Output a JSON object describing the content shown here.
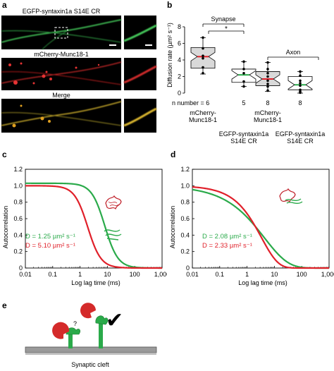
{
  "panel_a": {
    "label": "a",
    "rows": [
      {
        "title": "EGFP-syntaxin1a S14E CR"
      },
      {
        "title": "mCherry-Munc18-1"
      },
      {
        "title": "Merge"
      }
    ]
  },
  "panel_b": {
    "label": "b",
    "ylabel": "Diffusion rate (µm² s⁻¹)",
    "group_synapse": "Synapse",
    "group_axon": "Axon",
    "significance": "*",
    "n_prefix": "n number = ",
    "cat_labels": [
      {
        "line1": "mCherry-",
        "line2": "Munc18-1"
      },
      {
        "line1": "EGFP-syntaxin1a",
        "line2": "S14E CR"
      },
      {
        "line1": "mCherry-",
        "line2": "Munc18-1"
      },
      {
        "line1": "EGFP-syntaxin1a",
        "line2": "S14E CR"
      }
    ]
  },
  "panel_c": {
    "label": "c",
    "ylabel": "Autocorrelation",
    "xlabel": "Log lag time (ms)",
    "ann_green": "D = 1.25 µm² s⁻¹",
    "ann_red": "D = 5.10 µm² s⁻¹"
  },
  "panel_d": {
    "label": "d",
    "ylabel": "Autocorrelation",
    "xlabel": "Log lag time (ms)",
    "ann_green": "D = 2.08 µm² s⁻¹",
    "ann_red": "D = 2.33 µm² s⁻¹"
  },
  "panel_e": {
    "label": "e",
    "question": "?",
    "check": "✔",
    "caption": "Synaptic cleft"
  },
  "chart_data": [
    {
      "type": "box",
      "panel": "b",
      "ylabel": "Diffusion rate (µm² s⁻¹)",
      "ylim": [
        0,
        8
      ],
      "yticks": [
        0,
        2,
        4,
        6,
        8
      ],
      "categories": [
        "mCherry-Munc18-1 (Synapse)",
        "EGFP-syntaxin1a S14E CR (Synapse)",
        "mCherry-Munc18-1 (Axon)",
        "EGFP-syntaxin1a S14E CR (Axon)"
      ],
      "n": [
        6,
        5,
        8,
        8
      ],
      "box_fill": [
        "#d9d9d9",
        "#ffffff",
        "#d9d9d9",
        "#ffffff"
      ],
      "median_color": [
        "#e0202a",
        "#2aaa4a",
        "#e0202a",
        "#2aaa4a"
      ],
      "boxes": [
        {
          "min": 2.3,
          "q1": 3.0,
          "median": 4.4,
          "q3": 5.5,
          "max": 6.7,
          "points": [
            6.7,
            5.4,
            4.5,
            4.2,
            3.1,
            2.4
          ]
        },
        {
          "min": 0.8,
          "q1": 1.3,
          "median": 2.2,
          "q3": 2.9,
          "max": 3.8,
          "points": [
            3.8,
            2.9,
            2.4,
            1.4,
            0.8
          ]
        },
        {
          "min": 0.2,
          "q1": 0.9,
          "median": 1.7,
          "q3": 2.6,
          "max": 3.7,
          "points": [
            3.7,
            2.9,
            2.4,
            2.0,
            1.5,
            1.1,
            0.8,
            0.3
          ]
        },
        {
          "min": 0.0,
          "q1": 0.4,
          "median": 1.0,
          "q3": 2.0,
          "max": 2.6,
          "points": [
            2.6,
            2.1,
            1.5,
            1.2,
            0.9,
            0.4,
            0.2,
            0.05
          ]
        }
      ]
    },
    {
      "type": "line",
      "panel": "c",
      "xscale": "log",
      "xlim": [
        0.01,
        1000
      ],
      "ylim": [
        0,
        1.2
      ],
      "xticks": [
        "0.01",
        "0.1",
        "1",
        "10",
        "100",
        "1,000"
      ],
      "yticks": [
        "0",
        "0.2",
        "0.4",
        "0.6",
        "0.8",
        "1.0",
        "1.2"
      ],
      "series": [
        {
          "color": "#2aaa4a",
          "model": "fcs",
          "tau_ms": 8.0,
          "amp": 1.03
        },
        {
          "color": "#e0202a",
          "model": "fcs",
          "tau_ms": 1.9,
          "amp": 1.0
        }
      ]
    },
    {
      "type": "line",
      "panel": "d",
      "xscale": "log",
      "xlim": [
        0.01,
        1000
      ],
      "ylim": [
        0,
        1.2
      ],
      "xticks": [
        "0.01",
        "0.1",
        "1",
        "10",
        "100",
        "1,000"
      ],
      "yticks": [
        "0",
        "0.2",
        "0.4",
        "0.6",
        "0.8",
        "1.0",
        "1.2"
      ],
      "series": [
        {
          "color": "#2aaa4a",
          "model": "stretched",
          "tau_ms": 4.3,
          "beta": 0.5,
          "amp": 1.0
        },
        {
          "color": "#e0202a",
          "model": "stretched",
          "tau_ms": 3.4,
          "beta": 0.72,
          "amp": 1.2
        }
      ]
    }
  ]
}
